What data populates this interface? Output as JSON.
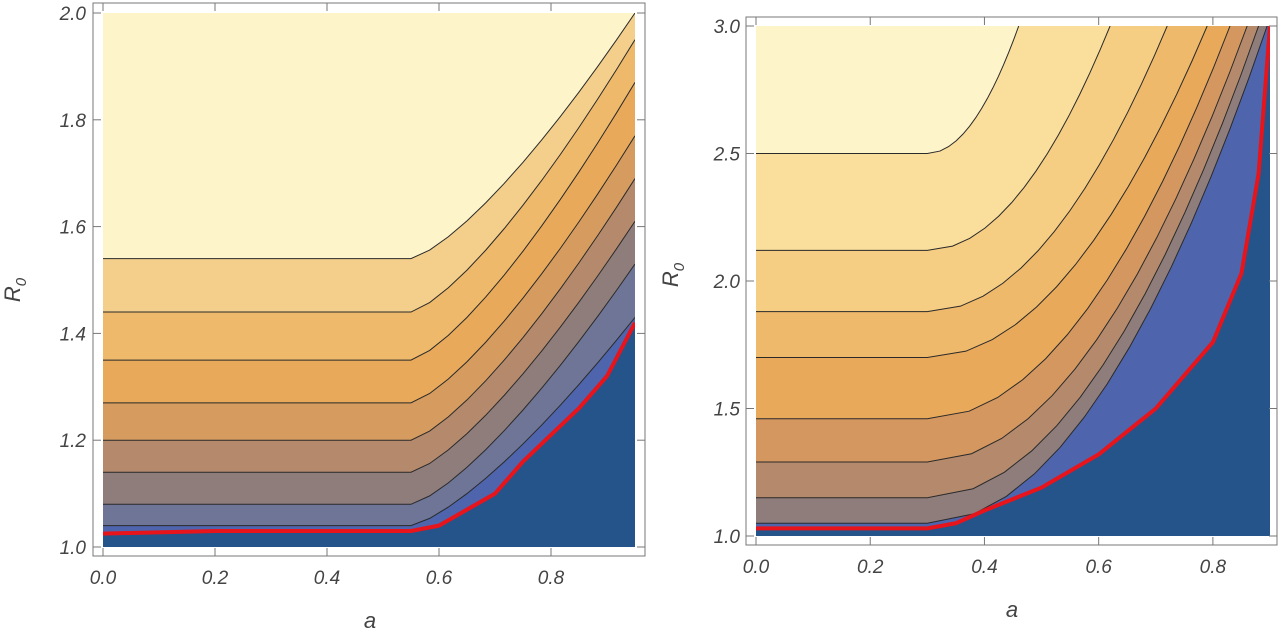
{
  "chart_data": [
    {
      "type": "contour",
      "xlabel": "a",
      "ylabel": "R",
      "ylabel_subscript": "0",
      "xlim": [
        0,
        0.95
      ],
      "ylim": [
        1.0,
        2.0
      ],
      "x_ticks": [
        {
          "value": 0.0,
          "label": "0.0"
        },
        {
          "value": 0.2,
          "label": "0.2"
        },
        {
          "value": 0.4,
          "label": "0.4"
        },
        {
          "value": 0.6,
          "label": "0.6"
        },
        {
          "value": 0.8,
          "label": "0.8"
        }
      ],
      "y_ticks": [
        {
          "value": 1.0,
          "label": "1.0"
        },
        {
          "value": 1.2,
          "label": "1.2"
        },
        {
          "value": 1.4,
          "label": "1.4"
        },
        {
          "value": 1.6,
          "label": "1.6"
        },
        {
          "value": 1.8,
          "label": "1.8"
        },
        {
          "value": 2.0,
          "label": "2.0"
        }
      ],
      "band_colors": [
        "#fdf4ca",
        "#f4cf8b",
        "#efb96b",
        "#e9a95a",
        "#d69c5f",
        "#b58a6c",
        "#8f7d7c",
        "#6e7596",
        "#4e64ac",
        "#25548a"
      ],
      "contour_lines": [
        {
          "flat_r0": 1.54,
          "r0_at_amax": 2.0
        },
        {
          "flat_r0": 1.44,
          "r0_at_amax": 1.95
        },
        {
          "flat_r0": 1.35,
          "r0_at_amax": 1.87
        },
        {
          "flat_r0": 1.27,
          "r0_at_amax": 1.77
        },
        {
          "flat_r0": 1.2,
          "r0_at_amax": 1.69
        },
        {
          "flat_r0": 1.14,
          "r0_at_amax": 1.61
        },
        {
          "flat_r0": 1.08,
          "r0_at_amax": 1.53
        },
        {
          "flat_r0": 1.04,
          "r0_at_amax": 1.43
        }
      ],
      "threshold_curve": [
        [
          0.0,
          1.025
        ],
        [
          0.2,
          1.03
        ],
        [
          0.4,
          1.03
        ],
        [
          0.55,
          1.03
        ],
        [
          0.6,
          1.04
        ],
        [
          0.65,
          1.07
        ],
        [
          0.7,
          1.1
        ],
        [
          0.75,
          1.16
        ],
        [
          0.8,
          1.21
        ],
        [
          0.85,
          1.26
        ],
        [
          0.9,
          1.32
        ],
        [
          0.95,
          1.42
        ]
      ]
    },
    {
      "type": "contour",
      "xlabel": "a",
      "ylabel": "R",
      "ylabel_subscript": "0",
      "xlim": [
        0,
        0.9
      ],
      "ylim": [
        1.0,
        3.0
      ],
      "x_ticks": [
        {
          "value": 0.0,
          "label": "0.0"
        },
        {
          "value": 0.2,
          "label": "0.2"
        },
        {
          "value": 0.4,
          "label": "0.4"
        },
        {
          "value": 0.6,
          "label": "0.6"
        },
        {
          "value": 0.8,
          "label": "0.8"
        }
      ],
      "y_ticks": [
        {
          "value": 1.0,
          "label": "1.0"
        },
        {
          "value": 1.5,
          "label": "1.5"
        },
        {
          "value": 2.0,
          "label": "2.0"
        },
        {
          "value": 2.5,
          "label": "2.5"
        },
        {
          "value": 3.0,
          "label": "3.0"
        }
      ],
      "band_colors": [
        "#fdf4ca",
        "#f9de9c",
        "#f5cd83",
        "#efb96b",
        "#e9a95a",
        "#d4975f",
        "#b58a6c",
        "#8f7d7c",
        "#4e64ac",
        "#25548a"
      ],
      "contour_lines": [
        {
          "flat_r0": 2.5,
          "r0_at_3": 0.46
        },
        {
          "flat_r0": 2.12,
          "r0_at_3": 0.62
        },
        {
          "flat_r0": 1.88,
          "r0_at_3": 0.72
        },
        {
          "flat_r0": 1.7,
          "r0_at_3": 0.79
        },
        {
          "flat_r0": 1.46,
          "r0_at_3": 0.83
        },
        {
          "flat_r0": 1.29,
          "r0_at_3": 0.86
        },
        {
          "flat_r0": 1.15,
          "r0_at_3": 0.88
        },
        {
          "flat_r0": 1.05,
          "r0_at_3": 0.895
        }
      ],
      "threshold_curve": [
        [
          0.0,
          1.03
        ],
        [
          0.2,
          1.03
        ],
        [
          0.3,
          1.03
        ],
        [
          0.35,
          1.05
        ],
        [
          0.4,
          1.1
        ],
        [
          0.5,
          1.19
        ],
        [
          0.6,
          1.32
        ],
        [
          0.7,
          1.5
        ],
        [
          0.8,
          1.76
        ],
        [
          0.85,
          2.03
        ],
        [
          0.88,
          2.42
        ],
        [
          0.9,
          3.0
        ]
      ]
    }
  ]
}
